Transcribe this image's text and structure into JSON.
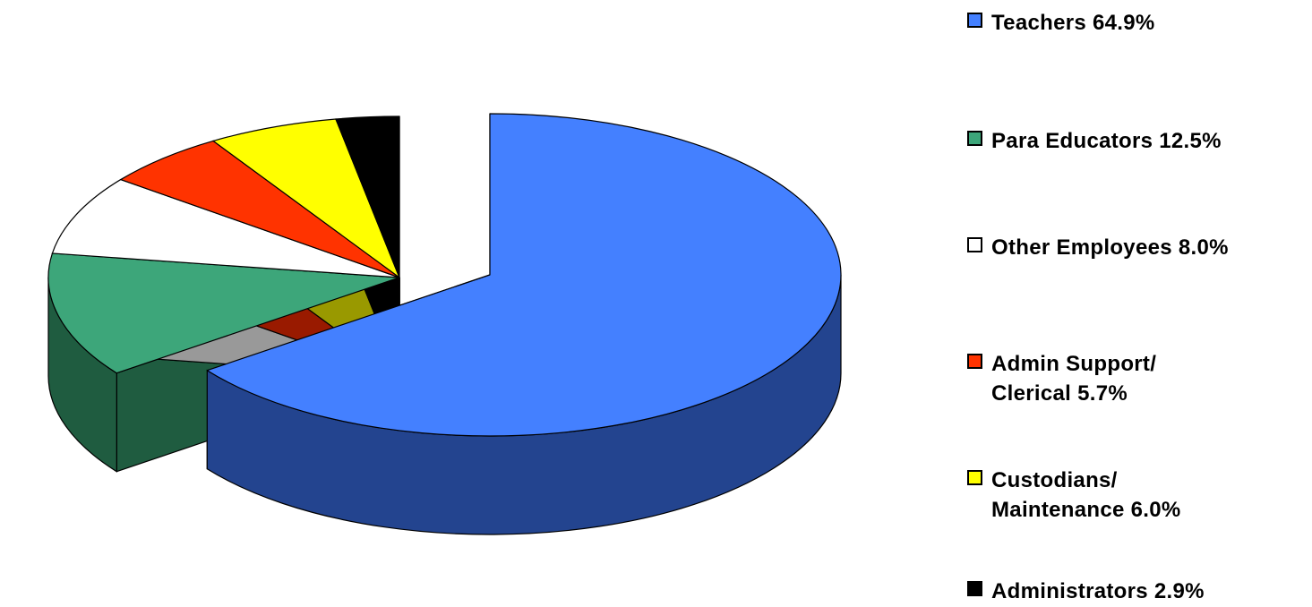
{
  "chart_data": {
    "type": "pie",
    "title": "",
    "legend_position": "right",
    "slices": [
      {
        "label": "Teachers 64.9%",
        "lines": [
          "Teachers 64.9%"
        ],
        "value": 64.9,
        "color": "#4480FF",
        "side_color": "#23448F"
      },
      {
        "label": "Para Educators 12.5%",
        "lines": [
          "Para Educators 12.5%"
        ],
        "value": 12.5,
        "color": "#3DA67A",
        "side_color": "#1F5C40"
      },
      {
        "label": "Other Employees 8.0%",
        "lines": [
          "Other Employees 8.0%"
        ],
        "value": 8.0,
        "color": "#FFFFFF",
        "side_color": "#999999"
      },
      {
        "label": "Admin Support/ Clerical 5.7%",
        "lines": [
          "Admin Support/",
          "Clerical  5.7%"
        ],
        "value": 5.7,
        "color": "#FF3300",
        "side_color": "#991A00"
      },
      {
        "label": "Custodians/ Maintenance 6.0%",
        "lines": [
          "Custodians/",
          "Maintenance 6.0%"
        ],
        "value": 6.0,
        "color": "#FFFF00",
        "side_color": "#999900"
      },
      {
        "label": "Administrators 2.9%",
        "lines": [
          "Administrators 2.9%"
        ],
        "value": 2.9,
        "color": "#000000",
        "side_color": "#000000"
      }
    ]
  }
}
